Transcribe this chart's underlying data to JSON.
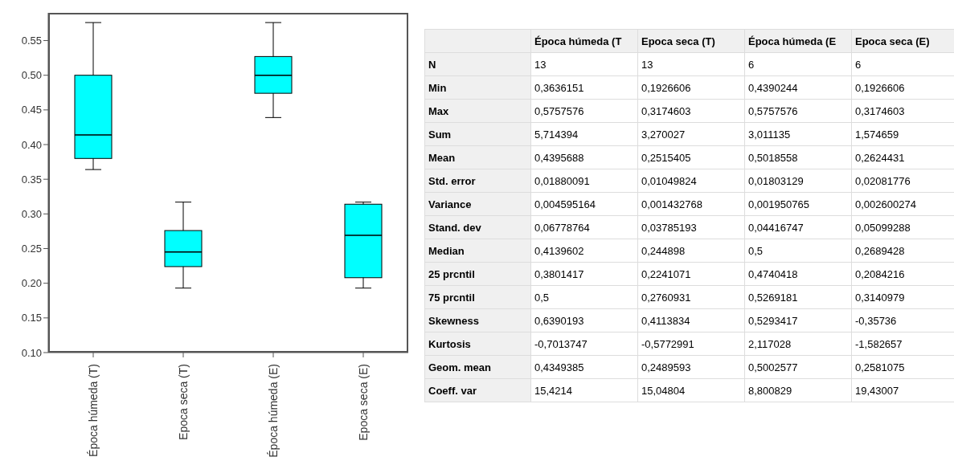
{
  "chart_data": [
    {
      "type": "box",
      "categories": [
        "Época húmeda (T)",
        "Epoca seca (T)",
        "Época húmeda (E)",
        "Epoca seca (E)"
      ],
      "color": "#00ffff",
      "ylim": [
        0.1,
        0.59
      ],
      "yticks": [
        {
          "value": 0.1,
          "label": "0.10"
        },
        {
          "value": 0.15,
          "label": "0.15"
        },
        {
          "value": 0.2,
          "label": "0.20"
        },
        {
          "value": 0.25,
          "label": "0.25"
        },
        {
          "value": 0.3,
          "label": "0.30"
        },
        {
          "value": 0.35,
          "label": "0.35"
        },
        {
          "value": 0.4,
          "label": "0.40"
        },
        {
          "value": 0.45,
          "label": "0.45"
        },
        {
          "value": 0.5,
          "label": "0.50"
        },
        {
          "value": 0.55,
          "label": "0.55"
        }
      ],
      "boxes": [
        {
          "low": 0.364,
          "q1": 0.38,
          "median": 0.414,
          "q3": 0.5,
          "high": 0.576
        },
        {
          "low": 0.193,
          "q1": 0.224,
          "median": 0.245,
          "q3": 0.276,
          "high": 0.317
        },
        {
          "low": 0.439,
          "q1": 0.474,
          "median": 0.5,
          "q3": 0.527,
          "high": 0.576
        },
        {
          "low": 0.193,
          "q1": 0.208,
          "median": 0.269,
          "q3": 0.314,
          "high": 0.317
        }
      ]
    },
    {
      "type": "other",
      "categories": [
        null,
        "Época húmeda (T",
        "Epoca seca (T)",
        "Época húmeda (E",
        "Epoca seca (E)"
      ],
      "y_categories": [
        "N",
        "Min",
        "Max",
        "Sum",
        "Mean",
        "Std. error",
        "Variance",
        "Stand. dev",
        "Median",
        "25 prcntil",
        "75 prcntil",
        "Skewness",
        "Kurtosis",
        "Geom. mean",
        "Coeff. var"
      ],
      "cell_labels": [
        [
          "13",
          "13",
          "6",
          "6"
        ],
        [
          "0,3636151",
          "0,1926606",
          "0,4390244",
          "0,1926606"
        ],
        [
          "0,5757576",
          "0,3174603",
          "0,5757576",
          "0,3174603"
        ],
        [
          "5,714394",
          "3,270027",
          "3,011135",
          "1,574659"
        ],
        [
          "0,4395688",
          "0,2515405",
          "0,5018558",
          "0,2624431"
        ],
        [
          "0,01880091",
          "0,01049824",
          "0,01803129",
          "0,02081776"
        ],
        [
          "0,004595164",
          "0,001432768",
          "0,001950765",
          "0,002600274"
        ],
        [
          "0,06778764",
          "0,03785193",
          "0,04416747",
          "0,05099288"
        ],
        [
          "0,4139602",
          "0,244898",
          "0,5",
          "0,2689428"
        ],
        [
          "0,3801417",
          "0,2241071",
          "0,4740418",
          "0,2084216"
        ],
        [
          "0,5",
          "0,2760931",
          "0,5269181",
          "0,3140979"
        ],
        [
          "0,6390193",
          "0,4113834",
          "0,5293417",
          "-0,35736"
        ],
        [
          "-0,7013747",
          "-0,5772991",
          "2,117028",
          "-1,582657"
        ],
        [
          "0,4349385",
          "0,2489593",
          "0,5002577",
          "0,2581075"
        ],
        [
          "15,4214",
          "15,04804",
          "8,800829",
          "19,43007"
        ]
      ]
    }
  ]
}
